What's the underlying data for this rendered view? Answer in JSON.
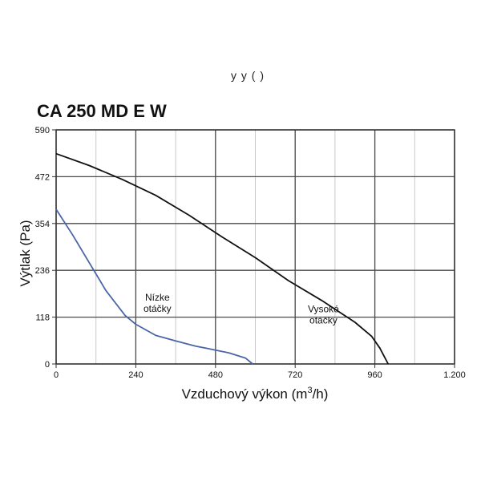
{
  "header_fragment": "y   y     (   )",
  "chart_data": {
    "type": "line",
    "title": "CA 250 MD E W",
    "xlabel": "Vzduchový výkon (m",
    "xlabel_sup": "3",
    "xlabel_tail": "/h)",
    "ylabel": "Výtlak (Pa)",
    "xlim": [
      0,
      1200
    ],
    "ylim": [
      0,
      590
    ],
    "x_ticks": [
      {
        "value": 0,
        "label": "0"
      },
      {
        "value": 240,
        "label": "240"
      },
      {
        "value": 480,
        "label": "480"
      },
      {
        "value": 720,
        "label": "720"
      },
      {
        "value": 960,
        "label": "960"
      },
      {
        "value": 1200,
        "label": "1.200"
      }
    ],
    "y_ticks": [
      {
        "value": 0,
        "label": "0"
      },
      {
        "value": 118,
        "label": "118"
      },
      {
        "value": 236,
        "label": "236"
      },
      {
        "value": 354,
        "label": "354"
      },
      {
        "value": 472,
        "label": "472"
      },
      {
        "value": 590,
        "label": "590"
      }
    ],
    "grid": true,
    "x_minor_step": 120,
    "series": [
      {
        "name": "Nízke otáčky",
        "label_lines": [
          "Nízke",
          "otáčky"
        ],
        "label_at": {
          "x": 305,
          "y": 160
        },
        "color": "#4a66a8",
        "x": [
          0,
          50,
          100,
          150,
          208,
          240,
          300,
          360,
          420,
          480,
          520,
          570,
          592
        ],
        "y": [
          390,
          325,
          255,
          185,
          122,
          100,
          72,
          58,
          45,
          35,
          28,
          15,
          0
        ]
      },
      {
        "name": "Vysoké otáčky",
        "label_lines": [
          "Vysoké",
          "otáčky"
        ],
        "label_at": {
          "x": 805,
          "y": 130
        },
        "color": "#111111",
        "x": [
          0,
          100,
          200,
          300,
          400,
          500,
          600,
          700,
          800,
          900,
          950,
          975,
          1000
        ],
        "y": [
          530,
          500,
          465,
          425,
          375,
          320,
          268,
          210,
          160,
          105,
          70,
          40,
          0
        ]
      }
    ]
  }
}
